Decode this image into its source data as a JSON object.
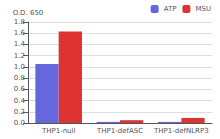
{
  "chart_data": {
    "type": "bar",
    "ylabel": "O.D. 650",
    "categories": [
      "THP1-null",
      "THP1-defASC",
      "THP1-defNLRP3"
    ],
    "series": [
      {
        "name": "ATP",
        "color": "#6666dd",
        "values": [
          1.05,
          0.02,
          0.02
        ]
      },
      {
        "name": "MSU",
        "color": "#dd3333",
        "values": [
          1.63,
          0.05,
          0.09
        ]
      }
    ],
    "ylim": [
      0,
      1.8
    ],
    "yticks": [
      {
        "value": 0,
        "label": "0.0"
      },
      0.2,
      0.4,
      0.6,
      0.8,
      {
        "value": 1,
        "label": "1.0"
      },
      1.2,
      1.4,
      1.6,
      1.8
    ],
    "grid": true,
    "legend": "upper right"
  }
}
